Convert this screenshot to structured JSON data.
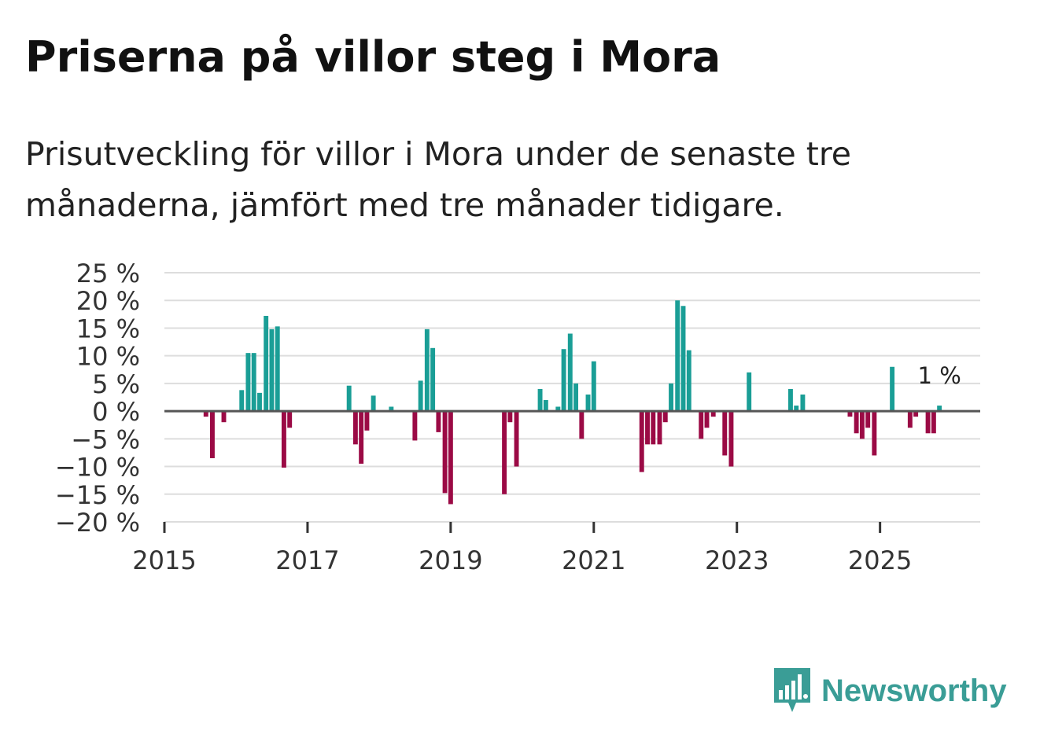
{
  "title": "Priserna på villor steg i Mora",
  "subtitle": "Prisutveckling för villor i Mora under de senaste tre månaderna, jämfört med tre månader tidigare.",
  "brand": {
    "name": "Newsworthy",
    "color": "#3a9d96",
    "icon": "bar-chart-speech-icon"
  },
  "chart_data": {
    "type": "bar",
    "title": "Priserna på villor steg i Mora",
    "xlabel": "",
    "ylabel": "",
    "unit": "%",
    "ylim": [
      -20,
      25
    ],
    "yticks": [
      25,
      20,
      15,
      10,
      5,
      0,
      -5,
      -10,
      -15,
      -20
    ],
    "ytick_labels": [
      "25 %",
      "20 %",
      "15 %",
      "10 %",
      "5 %",
      "0 %",
      "−5 %",
      "−10 %",
      "−15 %",
      "−20 %"
    ],
    "xlim": [
      2015,
      2026.4
    ],
    "xticks": [
      2015,
      2017,
      2019,
      2021,
      2023,
      2025
    ],
    "xtick_labels": [
      "2015",
      "2017",
      "2019",
      "2021",
      "2023",
      "2025"
    ],
    "colors": {
      "positive": "#1a9e96",
      "negative": "#9b0a45",
      "grid": "#dddddd",
      "zero": "#555555"
    },
    "annotation": {
      "x": 2025.83,
      "value": 1,
      "text": "1 %"
    },
    "series": [
      {
        "name": "Prisutveckling",
        "points": [
          {
            "x": 2015.58,
            "y": -1
          },
          {
            "x": 2015.67,
            "y": -8.5
          },
          {
            "x": 2015.83,
            "y": -2
          },
          {
            "x": 2016.08,
            "y": 3.8
          },
          {
            "x": 2016.17,
            "y": 10.5
          },
          {
            "x": 2016.25,
            "y": 10.5
          },
          {
            "x": 2016.33,
            "y": 3.3
          },
          {
            "x": 2016.42,
            "y": 17.2
          },
          {
            "x": 2016.5,
            "y": 14.8
          },
          {
            "x": 2016.58,
            "y": 15.3
          },
          {
            "x": 2016.67,
            "y": -10.2
          },
          {
            "x": 2016.75,
            "y": -3
          },
          {
            "x": 2017.58,
            "y": 4.6
          },
          {
            "x": 2017.67,
            "y": -6
          },
          {
            "x": 2017.75,
            "y": -9.5
          },
          {
            "x": 2017.83,
            "y": -3.5
          },
          {
            "x": 2017.92,
            "y": 2.8
          },
          {
            "x": 2018.17,
            "y": 0.8
          },
          {
            "x": 2018.5,
            "y": -5.3
          },
          {
            "x": 2018.58,
            "y": 5.5
          },
          {
            "x": 2018.67,
            "y": 14.8
          },
          {
            "x": 2018.75,
            "y": 11.4
          },
          {
            "x": 2018.83,
            "y": -3.8
          },
          {
            "x": 2018.92,
            "y": -14.8
          },
          {
            "x": 2019.0,
            "y": -16.8
          },
          {
            "x": 2019.75,
            "y": -15
          },
          {
            "x": 2019.83,
            "y": -2
          },
          {
            "x": 2019.92,
            "y": -10
          },
          {
            "x": 2020.25,
            "y": 4
          },
          {
            "x": 2020.33,
            "y": 2
          },
          {
            "x": 2020.5,
            "y": 0.8
          },
          {
            "x": 2020.58,
            "y": 11.2
          },
          {
            "x": 2020.67,
            "y": 14
          },
          {
            "x": 2020.75,
            "y": 5
          },
          {
            "x": 2020.83,
            "y": -5
          },
          {
            "x": 2020.92,
            "y": 3
          },
          {
            "x": 2021.0,
            "y": 9
          },
          {
            "x": 2021.67,
            "y": -11
          },
          {
            "x": 2021.75,
            "y": -6
          },
          {
            "x": 2021.83,
            "y": -6
          },
          {
            "x": 2021.92,
            "y": -6
          },
          {
            "x": 2022.0,
            "y": -2
          },
          {
            "x": 2022.08,
            "y": 5
          },
          {
            "x": 2022.17,
            "y": 20
          },
          {
            "x": 2022.25,
            "y": 19
          },
          {
            "x": 2022.33,
            "y": 11
          },
          {
            "x": 2022.5,
            "y": -5
          },
          {
            "x": 2022.58,
            "y": -3
          },
          {
            "x": 2022.67,
            "y": -1
          },
          {
            "x": 2022.83,
            "y": -8
          },
          {
            "x": 2022.92,
            "y": -10
          },
          {
            "x": 2023.17,
            "y": 7
          },
          {
            "x": 2023.75,
            "y": 4
          },
          {
            "x": 2023.83,
            "y": 1
          },
          {
            "x": 2023.92,
            "y": 3
          },
          {
            "x": 2024.58,
            "y": -1
          },
          {
            "x": 2024.67,
            "y": -4
          },
          {
            "x": 2024.75,
            "y": -5
          },
          {
            "x": 2024.83,
            "y": -3
          },
          {
            "x": 2024.92,
            "y": -8
          },
          {
            "x": 2025.17,
            "y": 8
          },
          {
            "x": 2025.42,
            "y": -3
          },
          {
            "x": 2025.5,
            "y": -1
          },
          {
            "x": 2025.67,
            "y": -4
          },
          {
            "x": 2025.75,
            "y": -4
          },
          {
            "x": 2025.83,
            "y": 1
          }
        ]
      }
    ]
  }
}
